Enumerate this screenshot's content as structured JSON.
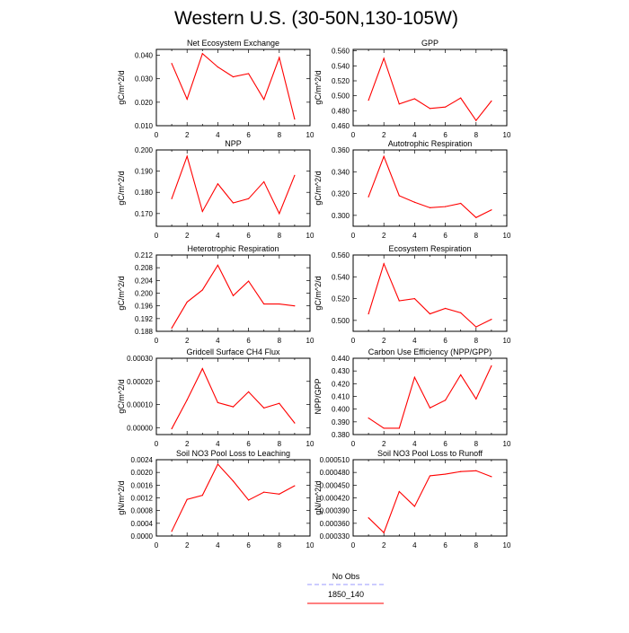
{
  "figure": {
    "title": "Western U.S. (30-50N,130-105W)",
    "legend": [
      {
        "label": "No Obs",
        "color": "#9999ff",
        "dash": true
      },
      {
        "label": "1850_140",
        "color": "#ff0000",
        "dash": false
      }
    ]
  },
  "chart_data": [
    {
      "type": "line",
      "title": "Net Ecosystem Exchange",
      "ylabel": "gC/m^2/d",
      "xlim": [
        0,
        10
      ],
      "ylim": [
        0.01,
        0.0425
      ],
      "xticks": [
        0,
        2,
        4,
        6,
        8,
        10
      ],
      "yticks": [
        0.01,
        0.02,
        0.03,
        0.04
      ],
      "ytick_labels": [
        "0.010",
        "0.020",
        "0.030",
        "0.040"
      ],
      "series": [
        {
          "name": "1850_140",
          "color": "#ff0000",
          "x": [
            1,
            2,
            3,
            4,
            5,
            6,
            7,
            8,
            9
          ],
          "y": [
            0.0365,
            0.0213,
            0.0407,
            0.035,
            0.0308,
            0.0322,
            0.0212,
            0.039,
            0.0128
          ]
        }
      ]
    },
    {
      "type": "line",
      "title": "GPP",
      "ylabel": "gC/m^2/d",
      "xlim": [
        0,
        10
      ],
      "ylim": [
        0.46,
        0.562
      ],
      "xticks": [
        0,
        2,
        4,
        6,
        8,
        10
      ],
      "yticks": [
        0.46,
        0.48,
        0.5,
        0.52,
        0.54,
        0.56
      ],
      "ytick_labels": [
        "0.460",
        "0.480",
        "0.500",
        "0.520",
        "0.540",
        "0.560"
      ],
      "series": [
        {
          "name": "1850_140",
          "color": "#ff0000",
          "x": [
            1,
            2,
            3,
            4,
            5,
            6,
            7,
            8,
            9
          ],
          "y": [
            0.494,
            0.55,
            0.489,
            0.496,
            0.483,
            0.485,
            0.497,
            0.467,
            0.493
          ]
        }
      ]
    },
    {
      "type": "line",
      "title": "NPP",
      "ylabel": "gC/m^2/d",
      "xlim": [
        0,
        10
      ],
      "ylim": [
        0.164,
        0.2
      ],
      "xticks": [
        0,
        2,
        4,
        6,
        8,
        10
      ],
      "yticks": [
        0.17,
        0.18,
        0.19,
        0.2
      ],
      "ytick_labels": [
        "0.170",
        "0.180",
        "0.190",
        "0.200"
      ],
      "series": [
        {
          "name": "1850_140",
          "color": "#ff0000",
          "x": [
            1,
            2,
            3,
            4,
            5,
            6,
            7,
            8,
            9
          ],
          "y": [
            0.177,
            0.197,
            0.171,
            0.184,
            0.175,
            0.177,
            0.185,
            0.17,
            0.188
          ]
        }
      ]
    },
    {
      "type": "line",
      "title": "Autotrophic Respiration",
      "ylabel": "gC/m^2/d",
      "xlim": [
        0,
        10
      ],
      "ylim": [
        0.29,
        0.36
      ],
      "xticks": [
        0,
        2,
        4,
        6,
        8,
        10
      ],
      "yticks": [
        0.3,
        0.32,
        0.34,
        0.36
      ],
      "ytick_labels": [
        "0.300",
        "0.320",
        "0.340",
        "0.360"
      ],
      "series": [
        {
          "name": "1850_140",
          "color": "#ff0000",
          "x": [
            1,
            2,
            3,
            4,
            5,
            6,
            7,
            8,
            9
          ],
          "y": [
            0.317,
            0.354,
            0.318,
            0.312,
            0.307,
            0.308,
            0.311,
            0.298,
            0.305
          ]
        }
      ]
    },
    {
      "type": "line",
      "title": "Heterotrophic Respiration",
      "ylabel": "gC/m^2/d",
      "xlim": [
        0,
        10
      ],
      "ylim": [
        0.188,
        0.212
      ],
      "xticks": [
        0,
        2,
        4,
        6,
        8,
        10
      ],
      "yticks": [
        0.188,
        0.192,
        0.196,
        0.2,
        0.204,
        0.208,
        0.212
      ],
      "ytick_labels": [
        "0.188",
        "0.192",
        "0.196",
        "0.200",
        "0.204",
        "0.208",
        "0.212"
      ],
      "series": [
        {
          "name": "1850_140",
          "color": "#ff0000",
          "x": [
            1,
            2,
            3,
            4,
            5,
            6,
            7,
            8,
            9
          ],
          "y": [
            0.189,
            0.1972,
            0.201,
            0.2088,
            0.1992,
            0.2038,
            0.1966,
            0.1966,
            0.196
          ]
        }
      ]
    },
    {
      "type": "line",
      "title": "Ecosystem Respiration",
      "ylabel": "gC/m^2/d",
      "xlim": [
        0,
        10
      ],
      "ylim": [
        0.49,
        0.56
      ],
      "xticks": [
        0,
        2,
        4,
        6,
        8,
        10
      ],
      "yticks": [
        0.5,
        0.52,
        0.54,
        0.56
      ],
      "ytick_labels": [
        "0.500",
        "0.520",
        "0.540",
        "0.560"
      ],
      "series": [
        {
          "name": "1850_140",
          "color": "#ff0000",
          "x": [
            1,
            2,
            3,
            4,
            5,
            6,
            7,
            8,
            9
          ],
          "y": [
            0.506,
            0.552,
            0.518,
            0.52,
            0.506,
            0.511,
            0.507,
            0.494,
            0.501
          ]
        }
      ]
    },
    {
      "type": "line",
      "title": "Gridcell Surface CH4 Flux",
      "ylabel": "gC/m^2/d",
      "xlim": [
        0,
        10
      ],
      "ylim": [
        -3e-05,
        0.0003
      ],
      "xticks": [
        0,
        2,
        4,
        6,
        8,
        10
      ],
      "yticks": [
        0.0,
        0.0001,
        0.0002,
        0.0003
      ],
      "ytick_labels": [
        "0.00000",
        "0.00010",
        "0.00020",
        "0.00030"
      ],
      "series": [
        {
          "name": "1850_140",
          "color": "#ff0000",
          "x": [
            1,
            2,
            3,
            4,
            5,
            6,
            7,
            8,
            9
          ],
          "y": [
            -5e-06,
            0.00012,
            0.000255,
            0.000108,
            9e-05,
            0.000155,
            8.5e-05,
            0.000105,
            2e-05
          ]
        }
      ]
    },
    {
      "type": "line",
      "title": "Carbon Use Efficiency (NPP/GPP)",
      "ylabel": "NPP/GPP",
      "xlim": [
        0,
        10
      ],
      "ylim": [
        0.38,
        0.44
      ],
      "xticks": [
        0,
        2,
        4,
        6,
        8,
        10
      ],
      "yticks": [
        0.38,
        0.39,
        0.4,
        0.41,
        0.42,
        0.43,
        0.44
      ],
      "ytick_labels": [
        "0.380",
        "0.390",
        "0.400",
        "0.410",
        "0.420",
        "0.430",
        "0.440"
      ],
      "series": [
        {
          "name": "1850_140",
          "color": "#ff0000",
          "x": [
            1,
            2,
            3,
            4,
            5,
            6,
            7,
            8,
            9
          ],
          "y": [
            0.393,
            0.385,
            0.385,
            0.425,
            0.401,
            0.407,
            0.427,
            0.408,
            0.434
          ]
        }
      ]
    },
    {
      "type": "line",
      "title": "Soil NO3 Pool Loss to Leaching",
      "ylabel": "gN/m^2/d",
      "xlim": [
        0,
        10
      ],
      "ylim": [
        0.0,
        0.0024
      ],
      "xticks": [
        0,
        2,
        4,
        6,
        8,
        10
      ],
      "yticks": [
        0.0,
        0.0004,
        0.0008,
        0.0012,
        0.0016,
        0.002,
        0.0024
      ],
      "ytick_labels": [
        "0.0000",
        "0.0004",
        "0.0008",
        "0.0012",
        "0.0016",
        "0.0020",
        "0.0024"
      ],
      "series": [
        {
          "name": "1850_140",
          "color": "#ff0000",
          "x": [
            1,
            2,
            3,
            4,
            5,
            6,
            7,
            8,
            9
          ],
          "y": [
            0.00015,
            0.00115,
            0.00128,
            0.00226,
            0.00173,
            0.00113,
            0.00138,
            0.00132,
            0.00158
          ]
        }
      ]
    },
    {
      "type": "line",
      "title": "Soil NO3 Pool Loss to Runoff",
      "ylabel": "gN/m^2/d",
      "xlim": [
        0,
        10
      ],
      "ylim": [
        0.00033,
        0.00051
      ],
      "xticks": [
        0,
        2,
        4,
        6,
        8,
        10
      ],
      "yticks": [
        0.00033,
        0.00036,
        0.00039,
        0.00042,
        0.00045,
        0.00048,
        0.00051
      ],
      "ytick_labels": [
        "0.000330",
        "0.000360",
        "0.000390",
        "0.000420",
        "0.000450",
        "0.000480",
        "0.000510"
      ],
      "series": [
        {
          "name": "1850_140",
          "color": "#ff0000",
          "x": [
            1,
            2,
            3,
            4,
            5,
            6,
            7,
            8,
            9
          ],
          "y": [
            0.000373,
            0.000338,
            0.000435,
            0.0004,
            0.000472,
            0.000476,
            0.000482,
            0.000484,
            0.00047
          ]
        }
      ]
    }
  ]
}
